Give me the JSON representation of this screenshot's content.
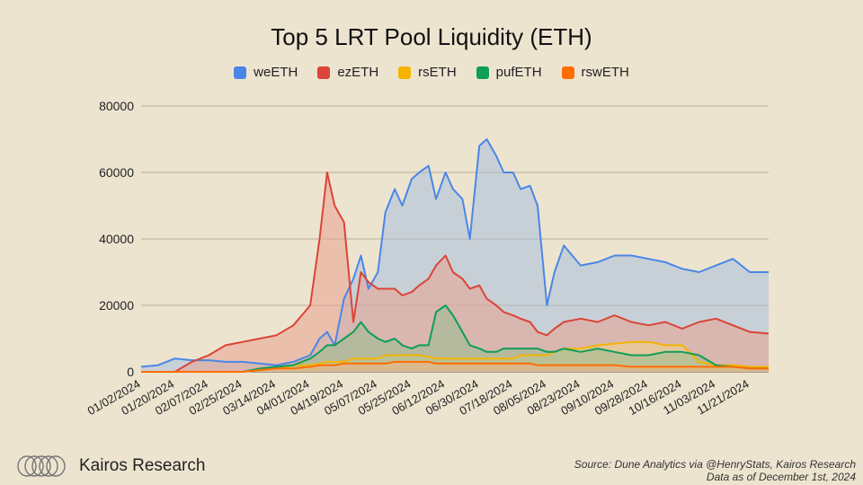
{
  "chart_data": {
    "type": "area",
    "title": "Top 5 LRT Pool Liquidity (ETH)",
    "xlabel": "",
    "ylabel": "",
    "ylim": [
      0,
      80000
    ],
    "yticks": [
      0,
      20000,
      40000,
      60000,
      80000
    ],
    "x_tick_labels": [
      "01/02/2024",
      "01/20/2024",
      "02/07/2024",
      "02/25/2024",
      "03/14/2024",
      "04/01/2024",
      "04/19/2024",
      "05/07/2024",
      "05/25/2024",
      "06/12/2024",
      "06/30/2024",
      "07/18/2024",
      "08/05/2024",
      "08/23/2024",
      "09/10/2024",
      "09/28/2024",
      "10/16/2024",
      "11/03/2024",
      "11/21/2024"
    ],
    "x": [
      "01/02/2024",
      "01/11/2024",
      "01/20/2024",
      "01/29/2024",
      "02/07/2024",
      "02/16/2024",
      "02/25/2024",
      "03/05/2024",
      "03/14/2024",
      "03/23/2024",
      "04/01/2024",
      "04/06/2024",
      "04/10/2024",
      "04/14/2024",
      "04/19/2024",
      "04/24/2024",
      "04/28/2024",
      "05/02/2024",
      "05/07/2024",
      "05/11/2024",
      "05/16/2024",
      "05/20/2024",
      "05/25/2024",
      "05/29/2024",
      "06/03/2024",
      "06/07/2024",
      "06/12/2024",
      "06/16/2024",
      "06/21/2024",
      "06/25/2024",
      "06/30/2024",
      "07/04/2024",
      "07/09/2024",
      "07/13/2024",
      "07/18/2024",
      "07/22/2024",
      "07/27/2024",
      "07/31/2024",
      "08/05/2024",
      "08/09/2024",
      "08/14/2024",
      "08/23/2024",
      "09/01/2024",
      "09/10/2024",
      "09/19/2024",
      "09/28/2024",
      "10/07/2024",
      "10/16/2024",
      "10/25/2024",
      "11/03/2024",
      "11/12/2024",
      "11/21/2024",
      "12/01/2024"
    ],
    "series": [
      {
        "name": "weETH",
        "color": "#4a86e8",
        "fill": "#aac0dd",
        "values": [
          1500,
          2000,
          4000,
          3500,
          3500,
          3000,
          3000,
          2500,
          2000,
          3000,
          5000,
          10000,
          12000,
          8000,
          22000,
          28000,
          35000,
          25000,
          30000,
          48000,
          55000,
          50000,
          58000,
          60000,
          62000,
          52000,
          60000,
          55000,
          52000,
          40000,
          68000,
          70000,
          65000,
          60000,
          60000,
          55000,
          56000,
          50000,
          20000,
          30000,
          38000,
          32000,
          33000,
          35000,
          35000,
          34000,
          33000,
          31000,
          30000,
          32000,
          34000,
          30000,
          30000
        ]
      },
      {
        "name": "ezETH",
        "color": "#db4437",
        "fill": "#e8a08e",
        "values": [
          0,
          0,
          0,
          3000,
          5000,
          8000,
          9000,
          10000,
          11000,
          14000,
          20000,
          40000,
          60000,
          50000,
          45000,
          15000,
          30000,
          27000,
          25000,
          25000,
          25000,
          23000,
          24000,
          26000,
          28000,
          32000,
          35000,
          30000,
          28000,
          25000,
          26000,
          22000,
          20000,
          18000,
          17000,
          16000,
          15000,
          12000,
          11000,
          13000,
          15000,
          16000,
          15000,
          17000,
          15000,
          14000,
          15000,
          13000,
          15000,
          16000,
          14000,
          12000,
          11500
        ]
      },
      {
        "name": "rsETH",
        "color": "#f4b400",
        "fill": "#f1d48a",
        "values": [
          0,
          0,
          0,
          0,
          0,
          0,
          0,
          500,
          1000,
          2000,
          2000,
          2500,
          3000,
          3000,
          3000,
          4000,
          4000,
          4000,
          4000,
          5000,
          5000,
          5000,
          5000,
          5000,
          4500,
          4000,
          4000,
          4000,
          4000,
          4000,
          4000,
          4000,
          4000,
          4000,
          4000,
          5000,
          5000,
          5000,
          5000,
          6000,
          7000,
          7000,
          8000,
          8500,
          9000,
          9000,
          8000,
          8000,
          3000,
          2000,
          2000,
          1500,
          1500
        ]
      },
      {
        "name": "pufETH",
        "color": "#0f9d58",
        "fill": "#97bd8f",
        "values": [
          0,
          0,
          0,
          0,
          0,
          0,
          0,
          1000,
          1500,
          2000,
          4000,
          6000,
          8000,
          8000,
          10000,
          12000,
          15000,
          12000,
          10000,
          9000,
          10000,
          8000,
          7000,
          8000,
          8000,
          18000,
          20000,
          17000,
          12000,
          8000,
          7000,
          6000,
          6000,
          7000,
          7000,
          7000,
          7000,
          7000,
          6000,
          6000,
          7000,
          6000,
          7000,
          6000,
          5000,
          5000,
          6000,
          6000,
          5000,
          2000,
          1500,
          1000,
          1000
        ]
      },
      {
        "name": "rswETH",
        "color": "#ff6d00",
        "fill": "#f3b487",
        "values": [
          0,
          0,
          0,
          0,
          0,
          0,
          0,
          500,
          1000,
          1000,
          1500,
          2000,
          2000,
          2000,
          2500,
          2500,
          2500,
          2500,
          2500,
          2500,
          3000,
          3000,
          3000,
          3000,
          3000,
          2500,
          2500,
          2500,
          2500,
          2500,
          2500,
          2500,
          2500,
          2500,
          2500,
          2500,
          2500,
          2000,
          2000,
          2000,
          2000,
          2000,
          2000,
          2000,
          1500,
          1500,
          1500,
          1500,
          1500,
          1500,
          1500,
          1000,
          1000
        ]
      }
    ],
    "legend_position": "top",
    "grid": true
  },
  "footer": {
    "brand": "Kairos Research",
    "source_line1": "Source: Dune Analytics via @HenryStats, Kairos Research",
    "source_line2": "Data as of December 1st, 2024"
  }
}
